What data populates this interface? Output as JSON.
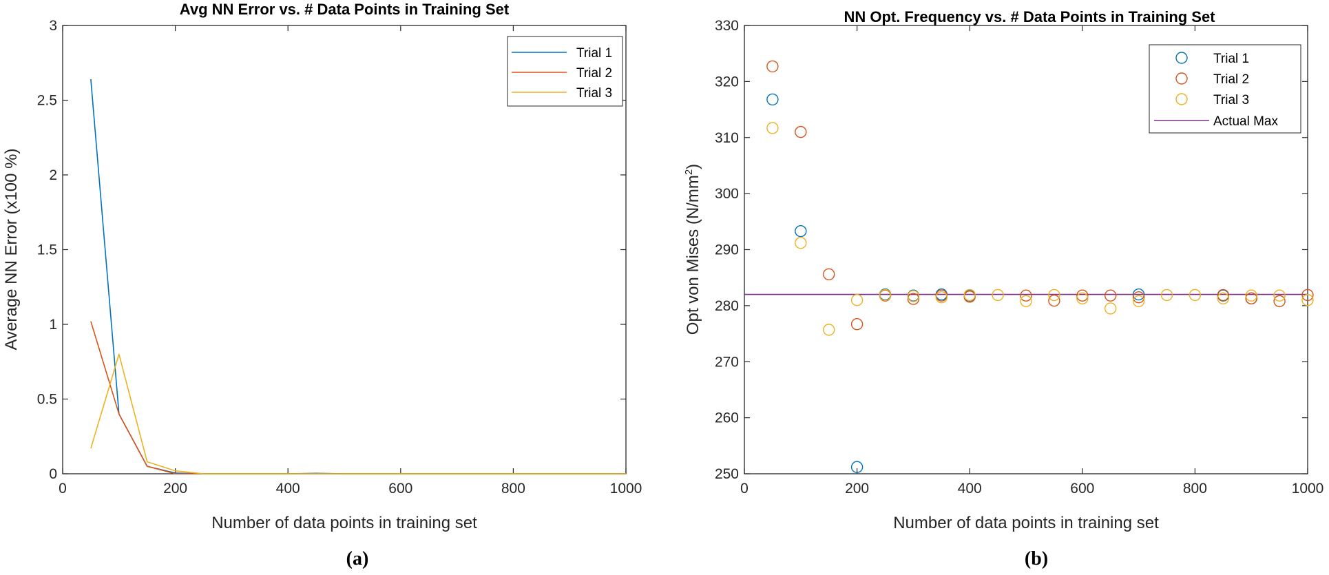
{
  "chart_data": [
    {
      "type": "line",
      "title": "Avg NN Error vs. # Data Points in Training Set",
      "xlabel": "Number of data points in training set",
      "ylabel": "Average NN Error (x100 %)",
      "xlim": [
        0,
        1000
      ],
      "ylim": [
        0,
        3
      ],
      "xticks": [
        0,
        200,
        400,
        600,
        800,
        1000
      ],
      "yticks": [
        0,
        0.5,
        1,
        1.5,
        2,
        2.5,
        3
      ],
      "x": [
        50,
        100,
        150,
        200,
        250,
        300,
        350,
        400,
        450,
        500,
        550,
        600,
        650,
        700,
        750,
        800,
        850,
        900,
        950,
        1000
      ],
      "series": [
        {
          "name": "Trial 1",
          "color": "#0072BD",
          "values": [
            2.64,
            0.4,
            0.05,
            0.005,
            0,
            0,
            0,
            0,
            0.003,
            0,
            0,
            0,
            0,
            0,
            0,
            0,
            0,
            0,
            0,
            0
          ]
        },
        {
          "name": "Trial 2",
          "color": "#D95319",
          "values": [
            1.02,
            0.4,
            0.05,
            0,
            0,
            0,
            0,
            0,
            0,
            0,
            0,
            0,
            0,
            0,
            0,
            0,
            0,
            0,
            0,
            0
          ]
        },
        {
          "name": "Trial 3",
          "color": "#EDB120",
          "values": [
            0.17,
            0.8,
            0.08,
            0.02,
            0,
            0,
            0,
            0,
            0,
            0,
            0,
            0,
            0,
            0,
            0,
            0,
            0,
            0,
            0,
            0
          ]
        }
      ],
      "legend": "top-right",
      "caption": "(a)"
    },
    {
      "type": "scatter",
      "title": "NN Opt. Frequency vs. # Data Points in Training Set",
      "xlabel": "Number of data points in training set",
      "ylabel": "Opt von Mises (N/mm",
      "ylabel_sup": "2",
      "ylabel_end": ")",
      "xlim": [
        0,
        1000
      ],
      "ylim": [
        250,
        330
      ],
      "xticks": [
        0,
        200,
        400,
        600,
        800,
        1000
      ],
      "yticks": [
        250,
        260,
        270,
        280,
        290,
        300,
        310,
        320,
        330
      ],
      "x": [
        50,
        100,
        150,
        200,
        250,
        300,
        350,
        400,
        450,
        500,
        550,
        600,
        650,
        700,
        750,
        800,
        850,
        900,
        950,
        1000
      ],
      "series": [
        {
          "name": "Trial 1",
          "color": "#0072BD",
          "values": [
            316.8,
            293.3,
            null,
            251.2,
            282.0,
            281.8,
            282.0,
            281.8,
            null,
            null,
            null,
            null,
            null,
            282.0,
            null,
            null,
            281.8,
            281.3,
            null,
            null
          ]
        },
        {
          "name": "Trial 2",
          "color": "#D95319",
          "values": [
            322.7,
            311.0,
            285.6,
            276.7,
            281.8,
            281.2,
            281.8,
            281.6,
            null,
            281.8,
            280.9,
            281.8,
            281.8,
            281.5,
            null,
            null,
            281.9,
            281.3,
            280.8,
            281.9
          ]
        },
        {
          "name": "Trial 3",
          "color": "#EDB120",
          "values": [
            311.7,
            291.2,
            275.7,
            281.0,
            281.9,
            281.7,
            281.5,
            281.9,
            281.9,
            280.8,
            281.9,
            281.3,
            279.5,
            280.8,
            281.9,
            281.9,
            281.3,
            281.8,
            281.8,
            281.0
          ]
        }
      ],
      "reference_line": {
        "name": "Actual Max",
        "color": "#7E2F8E",
        "value": 282.0
      },
      "legend": "top-right",
      "caption": "(b)"
    }
  ]
}
